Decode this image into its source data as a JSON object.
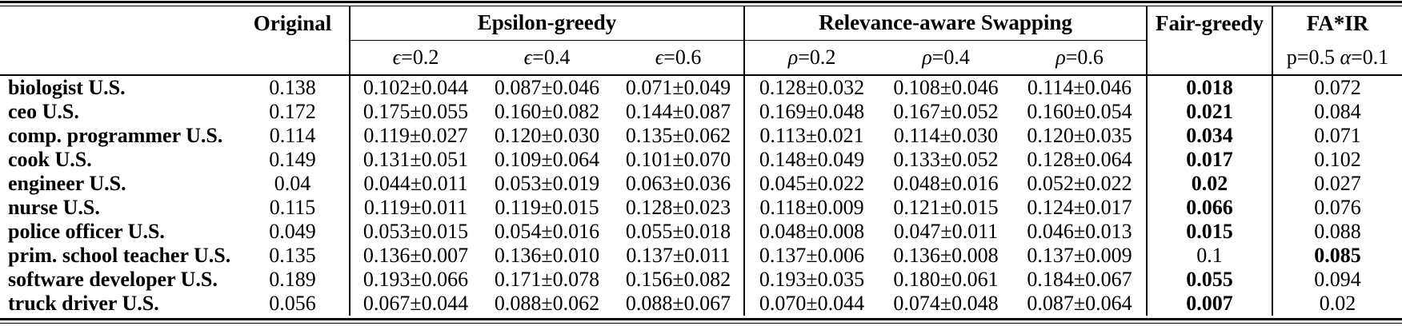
{
  "table": {
    "col_groups": {
      "original": "Original",
      "epsilon": "Epsilon-greedy",
      "swapping": "Relevance-aware Swapping",
      "fair_greedy": "Fair-greedy",
      "fa_ir": "FA*IR"
    },
    "subheaders": {
      "epsilon": [
        {
          "sym": "ϵ",
          "rest": "=0.2"
        },
        {
          "sym": "ϵ",
          "rest": "=0.4"
        },
        {
          "sym": "ϵ",
          "rest": "=0.6"
        }
      ],
      "swapping": [
        {
          "sym": "ρ",
          "rest": "=0.2"
        },
        {
          "sym": "ρ",
          "rest": "=0.4"
        },
        {
          "sym": "ρ",
          "rest": "=0.6"
        }
      ],
      "fa_ir": {
        "prefix": "p=0.5 ",
        "sym": "α",
        "rest": "=0.1"
      }
    },
    "rows": [
      {
        "label": "biologist U.S.",
        "original": "0.138",
        "epsilon": [
          "0.102±0.044",
          "0.087±0.046",
          "0.071±0.049"
        ],
        "swapping": [
          "0.128±0.032",
          "0.108±0.046",
          "0.114±0.046"
        ],
        "fair_greedy": "0.018",
        "fg_bold": true,
        "fa_ir": "0.072",
        "fair_bold": false
      },
      {
        "label": "ceo U.S.",
        "original": "0.172",
        "epsilon": [
          "0.175±0.055",
          "0.160±0.082",
          "0.144±0.087"
        ],
        "swapping": [
          "0.169±0.048",
          "0.167±0.052",
          "0.160±0.054"
        ],
        "fair_greedy": "0.021",
        "fg_bold": true,
        "fa_ir": "0.084",
        "fair_bold": false
      },
      {
        "label": "comp. programmer U.S.",
        "original": "0.114",
        "epsilon": [
          "0.119±0.027",
          "0.120±0.030",
          "0.135±0.062"
        ],
        "swapping": [
          "0.113±0.021",
          "0.114±0.030",
          "0.120±0.035"
        ],
        "fair_greedy": "0.034",
        "fg_bold": true,
        "fa_ir": "0.071",
        "fair_bold": false
      },
      {
        "label": "cook U.S.",
        "original": "0.149",
        "epsilon": [
          "0.131±0.051",
          "0.109±0.064",
          "0.101±0.070"
        ],
        "swapping": [
          "0.148±0.049",
          "0.133±0.052",
          "0.128±0.064"
        ],
        "fair_greedy": "0.017",
        "fg_bold": true,
        "fa_ir": "0.102",
        "fair_bold": false
      },
      {
        "label": "engineer U.S.",
        "original": "0.04",
        "epsilon": [
          "0.044±0.011",
          "0.053±0.019",
          "0.063±0.036"
        ],
        "swapping": [
          "0.045±0.022",
          "0.048±0.016",
          "0.052±0.022"
        ],
        "fair_greedy": "0.02",
        "fg_bold": true,
        "fa_ir": "0.027",
        "fair_bold": false
      },
      {
        "label": "nurse U.S.",
        "original": "0.115",
        "epsilon": [
          "0.119±0.011",
          "0.119±0.015",
          "0.128±0.023"
        ],
        "swapping": [
          "0.118±0.009",
          "0.121±0.015",
          "0.124±0.017"
        ],
        "fair_greedy": "0.066",
        "fg_bold": true,
        "fa_ir": "0.076",
        "fair_bold": false
      },
      {
        "label": "police officer U.S.",
        "original": "0.049",
        "epsilon": [
          "0.053±0.015",
          "0.054±0.016",
          "0.055±0.018"
        ],
        "swapping": [
          "0.048±0.008",
          "0.047±0.011",
          "0.046±0.013"
        ],
        "fair_greedy": "0.015",
        "fg_bold": true,
        "fa_ir": "0.088",
        "fair_bold": false
      },
      {
        "label": "prim. school teacher U.S.",
        "original": "0.135",
        "epsilon": [
          "0.136±0.007",
          "0.136±0.010",
          "0.137±0.011"
        ],
        "swapping": [
          "0.137±0.006",
          "0.136±0.008",
          "0.137±0.009"
        ],
        "fair_greedy": "0.1",
        "fg_bold": false,
        "fa_ir": "0.085",
        "fair_bold": true
      },
      {
        "label": "software developer U.S.",
        "original": "0.189",
        "epsilon": [
          "0.193±0.066",
          "0.171±0.078",
          "0.156±0.082"
        ],
        "swapping": [
          "0.193±0.035",
          "0.180±0.061",
          "0.184±0.067"
        ],
        "fair_greedy": "0.055",
        "fg_bold": true,
        "fa_ir": "0.094",
        "fair_bold": false
      },
      {
        "label": "truck driver U.S.",
        "original": "0.056",
        "epsilon": [
          "0.067±0.044",
          "0.088±0.062",
          "0.088±0.067"
        ],
        "swapping": [
          "0.070±0.044",
          "0.074±0.048",
          "0.087±0.064"
        ],
        "fair_greedy": "0.007",
        "fg_bold": true,
        "fa_ir": "0.02",
        "fair_bold": false
      }
    ]
  }
}
